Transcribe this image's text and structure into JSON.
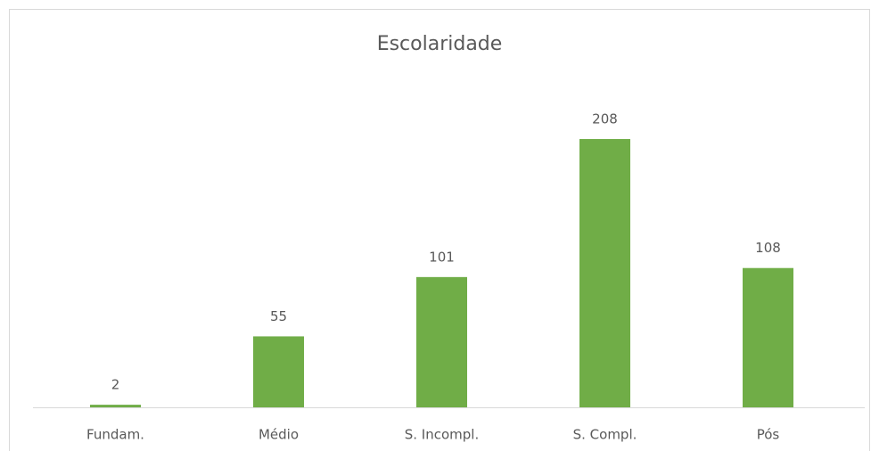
{
  "chart_data": {
    "type": "bar",
    "title": "Escolaridade",
    "categories": [
      "Fundam.",
      "Médio",
      "S. Incompl.",
      "S. Compl.",
      "Pós"
    ],
    "values": [
      2,
      55,
      101,
      208,
      108
    ],
    "color": "#70ad47"
  }
}
